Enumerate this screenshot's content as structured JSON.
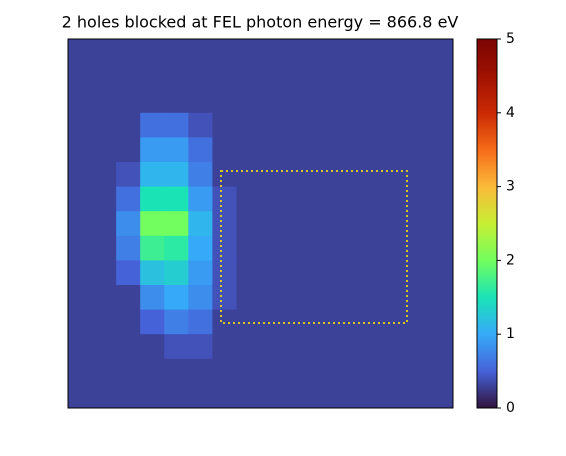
{
  "chart_data": {
    "type": "heatmap",
    "title": "2 holes blocked at FEL photon energy = 866.8 eV",
    "colormap": "turbo",
    "clim": [
      0,
      5
    ],
    "cticks": [
      0,
      1,
      2,
      3,
      4,
      5
    ],
    "values": [
      [
        0.3,
        0.3,
        0.3,
        0.3,
        0.3,
        0.3,
        0.3,
        0.3,
        0.3,
        0.3,
        0.3,
        0.3,
        0.3,
        0.3,
        0.3,
        0.3
      ],
      [
        0.3,
        0.3,
        0.3,
        0.3,
        0.3,
        0.3,
        0.3,
        0.3,
        0.3,
        0.3,
        0.3,
        0.3,
        0.3,
        0.3,
        0.3,
        0.3
      ],
      [
        0.3,
        0.3,
        0.3,
        0.3,
        0.3,
        0.3,
        0.3,
        0.3,
        0.3,
        0.3,
        0.3,
        0.3,
        0.3,
        0.3,
        0.3,
        0.3
      ],
      [
        0.3,
        0.3,
        0.3,
        0.6,
        0.6,
        0.4,
        0.3,
        0.3,
        0.3,
        0.3,
        0.3,
        0.3,
        0.3,
        0.3,
        0.3,
        0.3
      ],
      [
        0.3,
        0.3,
        0.3,
        0.9,
        0.9,
        0.6,
        0.3,
        0.3,
        0.3,
        0.3,
        0.3,
        0.3,
        0.3,
        0.3,
        0.3,
        0.3
      ],
      [
        0.3,
        0.3,
        0.4,
        1.1,
        1.1,
        0.7,
        0.3,
        0.3,
        0.3,
        0.3,
        0.3,
        0.3,
        0.3,
        0.3,
        0.3,
        0.3
      ],
      [
        0.3,
        0.3,
        0.6,
        1.5,
        1.5,
        0.9,
        0.4,
        0.3,
        0.3,
        0.3,
        0.3,
        0.3,
        0.3,
        0.3,
        0.3,
        0.3
      ],
      [
        0.3,
        0.3,
        0.8,
        2.0,
        2.0,
        1.1,
        0.4,
        0.3,
        0.3,
        0.3,
        0.3,
        0.3,
        0.3,
        0.3,
        0.3,
        0.3
      ],
      [
        0.3,
        0.3,
        0.7,
        1.7,
        1.6,
        1.0,
        0.4,
        0.3,
        0.3,
        0.3,
        0.3,
        0.3,
        0.3,
        0.3,
        0.3,
        0.3
      ],
      [
        0.3,
        0.3,
        0.5,
        1.2,
        1.3,
        0.9,
        0.4,
        0.3,
        0.3,
        0.3,
        0.3,
        0.3,
        0.3,
        0.3,
        0.3,
        0.3
      ],
      [
        0.3,
        0.3,
        0.3,
        0.8,
        1.0,
        0.8,
        0.4,
        0.3,
        0.3,
        0.3,
        0.3,
        0.3,
        0.3,
        0.3,
        0.3,
        0.3
      ],
      [
        0.3,
        0.3,
        0.3,
        0.5,
        0.7,
        0.6,
        0.3,
        0.3,
        0.3,
        0.3,
        0.3,
        0.3,
        0.3,
        0.3,
        0.3,
        0.3
      ],
      [
        0.3,
        0.3,
        0.3,
        0.3,
        0.4,
        0.4,
        0.3,
        0.3,
        0.3,
        0.3,
        0.3,
        0.3,
        0.3,
        0.3,
        0.3,
        0.3
      ],
      [
        0.3,
        0.3,
        0.3,
        0.3,
        0.3,
        0.3,
        0.3,
        0.3,
        0.3,
        0.3,
        0.3,
        0.3,
        0.3,
        0.3,
        0.3,
        0.3
      ],
      [
        0.3,
        0.3,
        0.3,
        0.3,
        0.3,
        0.3,
        0.3,
        0.3,
        0.3,
        0.3,
        0.3,
        0.3,
        0.3,
        0.3,
        0.3,
        0.3
      ]
    ]
  }
}
